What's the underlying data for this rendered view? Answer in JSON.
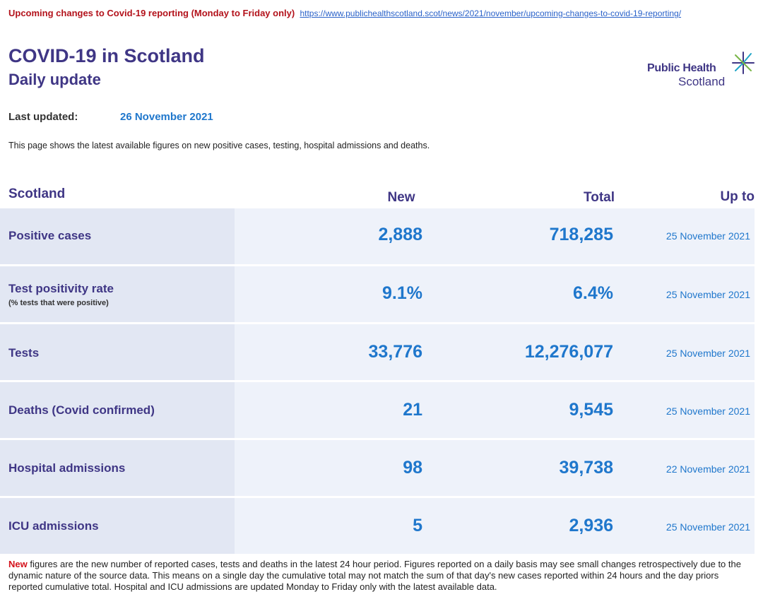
{
  "banner": {
    "text": "Upcoming changes to Covid-19 reporting (Monday to Friday only)",
    "link": "https://www.publichealthscotland.scot/news/2021/november/upcoming-changes-to-covid-19-reporting/"
  },
  "header": {
    "title": "COVID-19 in Scotland",
    "subtitle": "Daily update",
    "logo_line1": "Public Health",
    "logo_line2": "Scotland"
  },
  "last_updated": {
    "label": "Last updated:",
    "value": "26 November 2021"
  },
  "intro": "This page shows the latest available figures on new positive cases, testing, hospital admissions and deaths.",
  "table": {
    "headers": {
      "region": "Scotland",
      "new": "New",
      "total": "Total",
      "upto": "Up to"
    },
    "rows": [
      {
        "name": "Positive cases",
        "sub": "",
        "new": "2,888",
        "total": "718,285",
        "date": "25 November 2021"
      },
      {
        "name": "Test positivity rate",
        "sub": "(% tests that were positive)",
        "new": "9.1%",
        "total": "6.4%",
        "date": "25 November 2021"
      },
      {
        "name": "Tests",
        "sub": "",
        "new": "33,776",
        "total": "12,276,077",
        "date": "25 November 2021"
      },
      {
        "name": "Deaths (Covid confirmed)",
        "sub": "",
        "new": "21",
        "total": "9,545",
        "date": "25 November 2021"
      },
      {
        "name": "Hospital admissions",
        "sub": "",
        "new": "98",
        "total": "39,738",
        "date": "22 November 2021"
      },
      {
        "name": "ICU admissions",
        "sub": "",
        "new": "5",
        "total": "2,936",
        "date": "25 November 2021"
      }
    ]
  },
  "footnote": {
    "highlight": "New",
    "text": " figures are the new number of reported cases, tests and deaths in the latest 24 hour period. Figures reported on a daily basis may see small changes retrospectively due to the dynamic nature of the source data. This means on a single day the cumulative total may not match the sum of that day's new cases reported within 24 hours and the day priors reported cumulative total. Hospital and ICU admissions are updated Monday to Friday only with the latest available data."
  },
  "colors": {
    "brand": "#3f3685",
    "accent": "#1f77cc",
    "alert": "#b3121b"
  }
}
